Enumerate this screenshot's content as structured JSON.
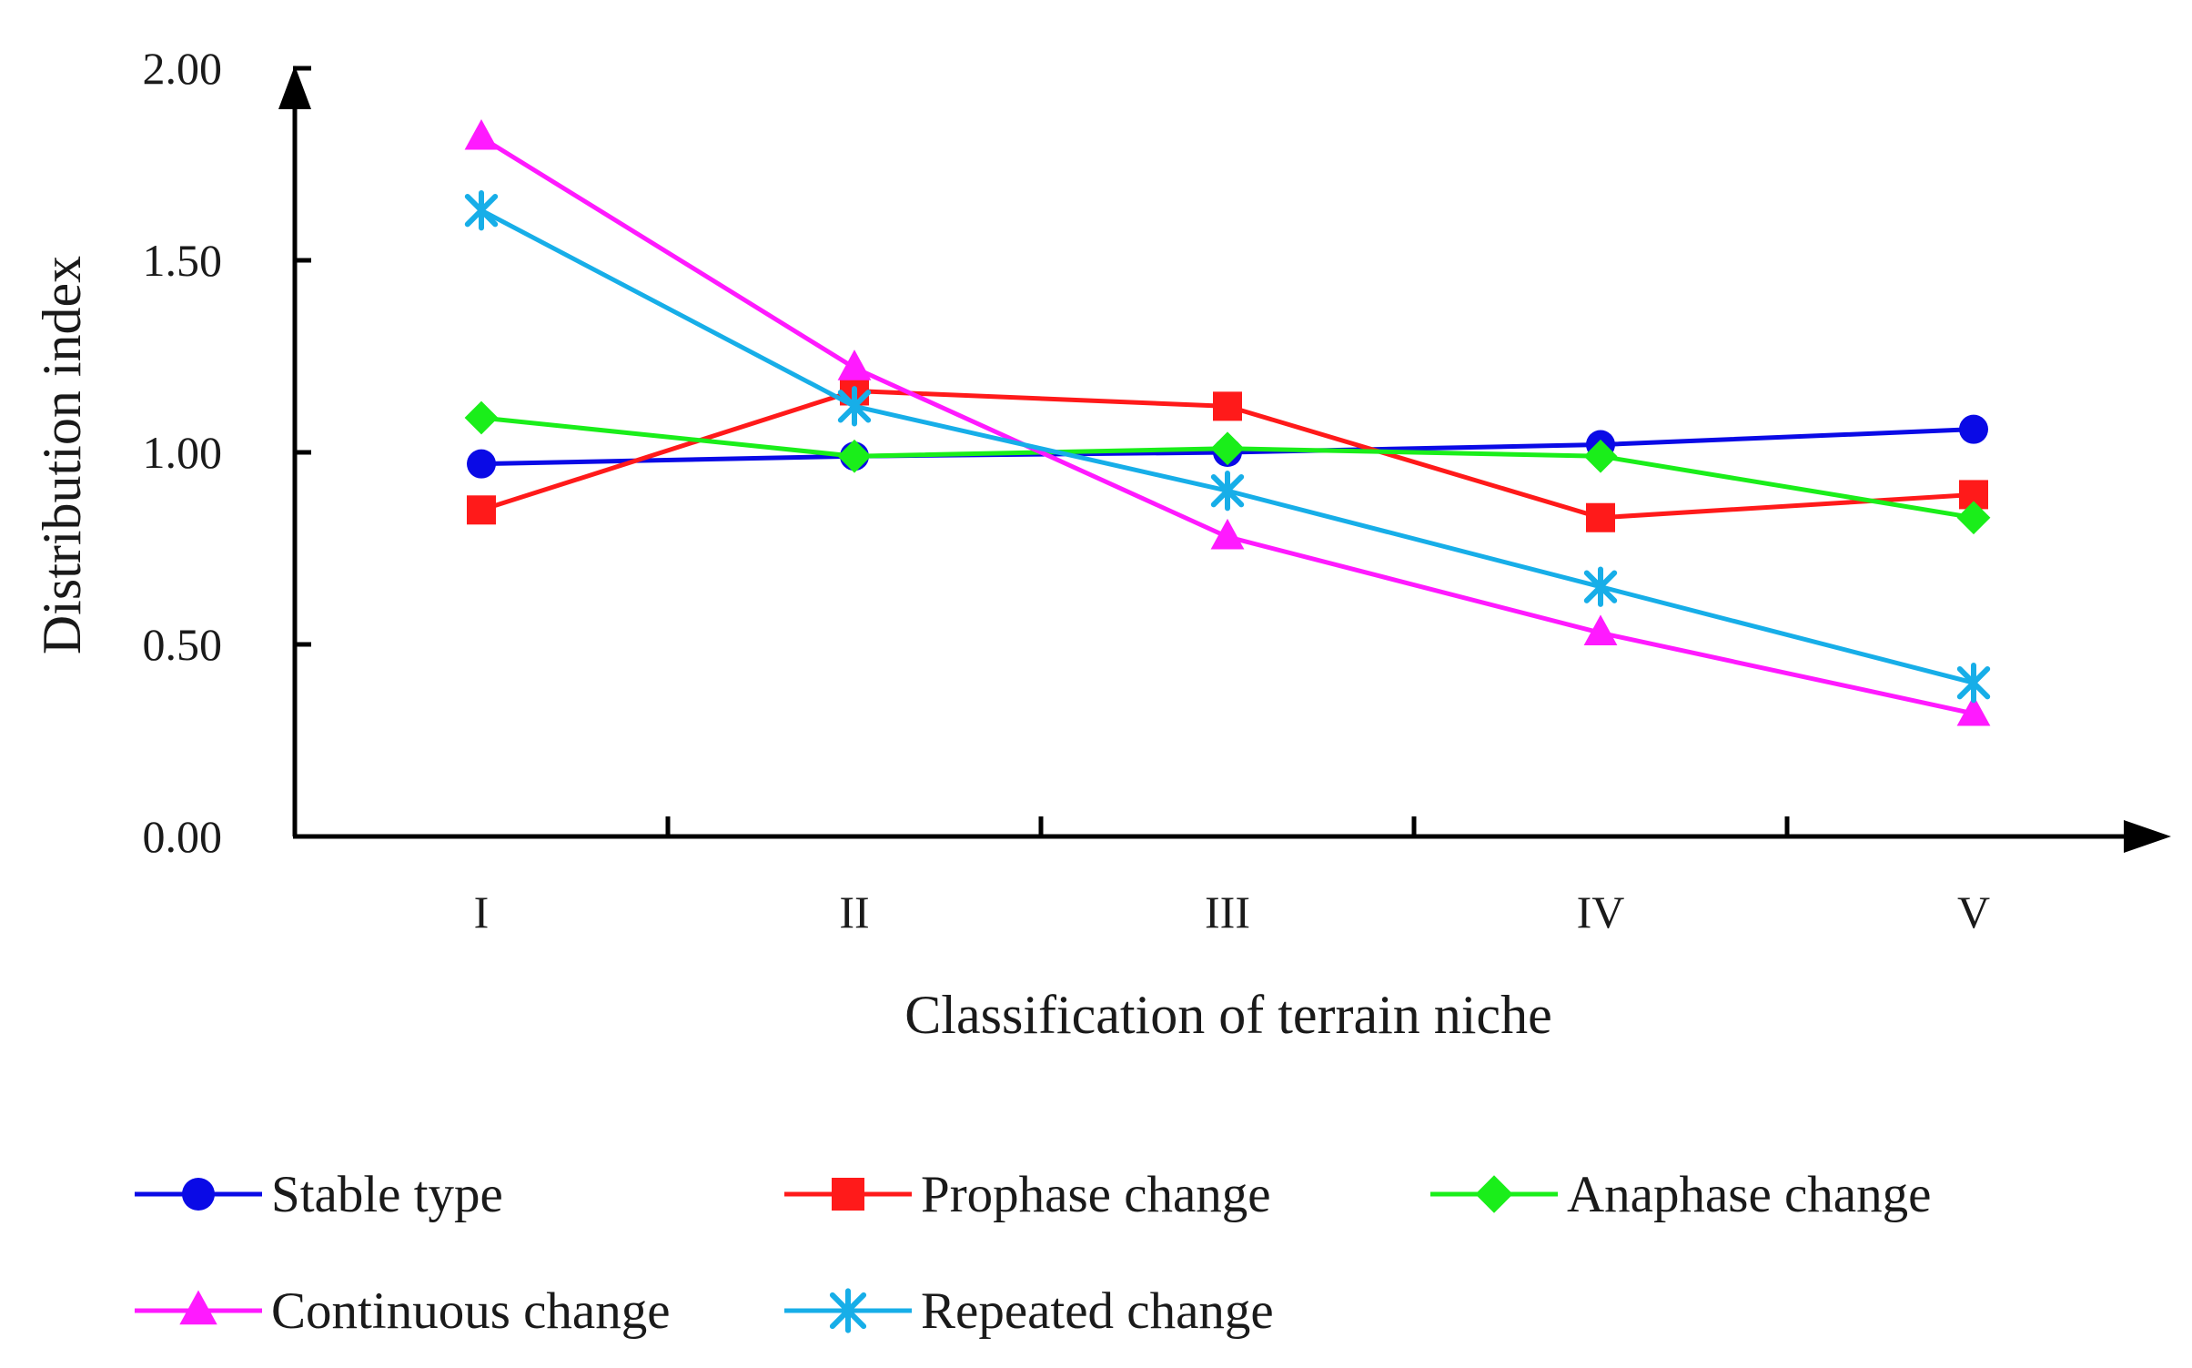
{
  "chart_data": {
    "type": "line",
    "title": "",
    "xlabel": "Classification of terrain niche",
    "ylabel": "Distribution index",
    "categories": [
      "I",
      "II",
      "III",
      "IV",
      "V"
    ],
    "ylim": [
      0,
      2
    ],
    "yticks": [
      "0.00",
      "0.50",
      "1.00",
      "1.50",
      "2.00"
    ],
    "ytick_values": [
      0,
      0.5,
      1,
      1.5,
      2
    ],
    "grid": false,
    "legend_position": "bottom",
    "series": [
      {
        "name": "Stable type",
        "marker": "circle",
        "color": "#0a0ae6",
        "values": [
          0.97,
          0.99,
          1.0,
          1.02,
          1.06
        ]
      },
      {
        "name": "Prophase change",
        "marker": "square",
        "color": "#ff1a1a",
        "values": [
          0.85,
          1.16,
          1.12,
          0.83,
          0.89
        ]
      },
      {
        "name": "Anaphase change",
        "marker": "diamond",
        "color": "#1aee1a",
        "values": [
          1.09,
          0.99,
          1.01,
          0.99,
          0.83
        ]
      },
      {
        "name": "Continuous change",
        "marker": "triangle",
        "color": "#ff1aff",
        "values": [
          1.82,
          1.22,
          0.78,
          0.53,
          0.32
        ]
      },
      {
        "name": "Repeated change",
        "marker": "asterisk",
        "color": "#17aee8",
        "values": [
          1.63,
          1.12,
          0.9,
          0.65,
          0.4
        ]
      }
    ]
  }
}
